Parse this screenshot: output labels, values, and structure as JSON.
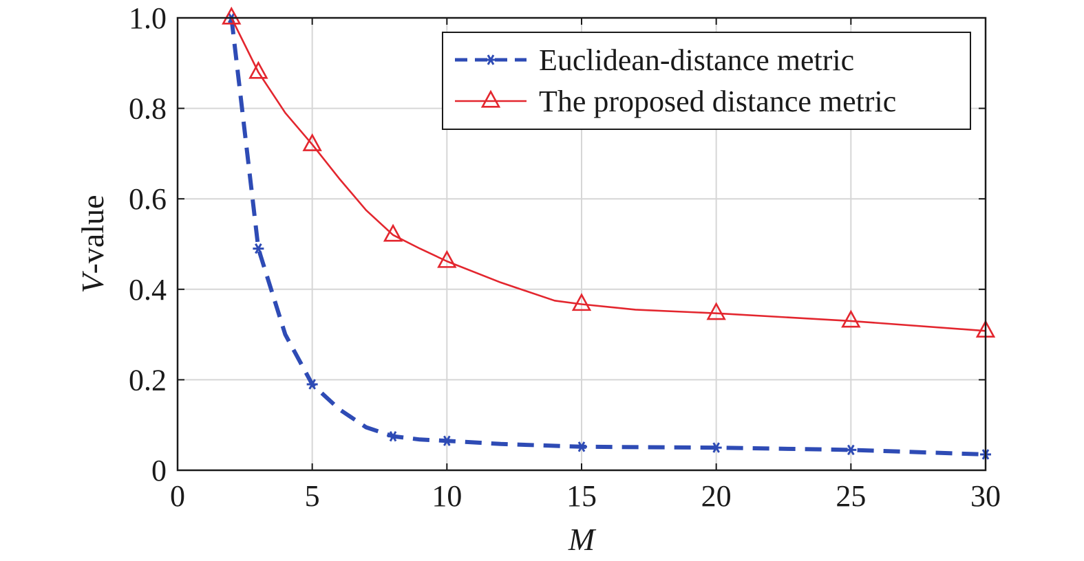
{
  "chart_data": {
    "type": "line",
    "xlabel": "M",
    "ylabel_italic": "V",
    "ylabel_rest": "-value",
    "xlim": [
      0,
      30
    ],
    "ylim": [
      0,
      1.0
    ],
    "xticks": [
      0,
      5,
      10,
      15,
      20,
      25,
      30
    ],
    "yticks": [
      0,
      0.2,
      0.4,
      0.6,
      0.8,
      1.0
    ],
    "xtick_labels": [
      "0",
      "5",
      "10",
      "15",
      "20",
      "25",
      "30"
    ],
    "ytick_labels": [
      "0",
      "0.2",
      "0.4",
      "0.6",
      "0.8",
      "1.0"
    ],
    "grid": true,
    "legend_position": "top-right",
    "series": [
      {
        "name": "Euclidean-distance metric",
        "color": "#2e4bb5",
        "line_style": "dashed",
        "marker": "asterisk",
        "line": [
          [
            2,
            1.0
          ],
          [
            3,
            0.49
          ],
          [
            4,
            0.3
          ],
          [
            5,
            0.19
          ],
          [
            6,
            0.135
          ],
          [
            7,
            0.095
          ],
          [
            8,
            0.075
          ],
          [
            9,
            0.068
          ],
          [
            10,
            0.065
          ],
          [
            12,
            0.058
          ],
          [
            15,
            0.052
          ],
          [
            20,
            0.05
          ],
          [
            25,
            0.045
          ],
          [
            30,
            0.035
          ]
        ],
        "markers": [
          [
            2,
            1.0
          ],
          [
            3,
            0.49
          ],
          [
            5,
            0.19
          ],
          [
            8,
            0.075
          ],
          [
            10,
            0.065
          ],
          [
            15,
            0.052
          ],
          [
            20,
            0.05
          ],
          [
            25,
            0.045
          ],
          [
            30,
            0.035
          ]
        ]
      },
      {
        "name": "The proposed distance metric",
        "color": "#e3262e",
        "line_style": "solid",
        "marker": "triangle",
        "line": [
          [
            2,
            1.0
          ],
          [
            3,
            0.88
          ],
          [
            4,
            0.79
          ],
          [
            5,
            0.72
          ],
          [
            6,
            0.645
          ],
          [
            7,
            0.575
          ],
          [
            8,
            0.52
          ],
          [
            9,
            0.49
          ],
          [
            10,
            0.462
          ],
          [
            12,
            0.415
          ],
          [
            14,
            0.375
          ],
          [
            15,
            0.367
          ],
          [
            17,
            0.355
          ],
          [
            20,
            0.347
          ],
          [
            25,
            0.33
          ],
          [
            30,
            0.308
          ]
        ],
        "markers": [
          [
            2,
            1.0
          ],
          [
            3,
            0.88
          ],
          [
            5,
            0.72
          ],
          [
            8,
            0.52
          ],
          [
            10,
            0.462
          ],
          [
            15,
            0.367
          ],
          [
            20,
            0.347
          ],
          [
            25,
            0.33
          ],
          [
            30,
            0.308
          ]
        ]
      }
    ]
  }
}
